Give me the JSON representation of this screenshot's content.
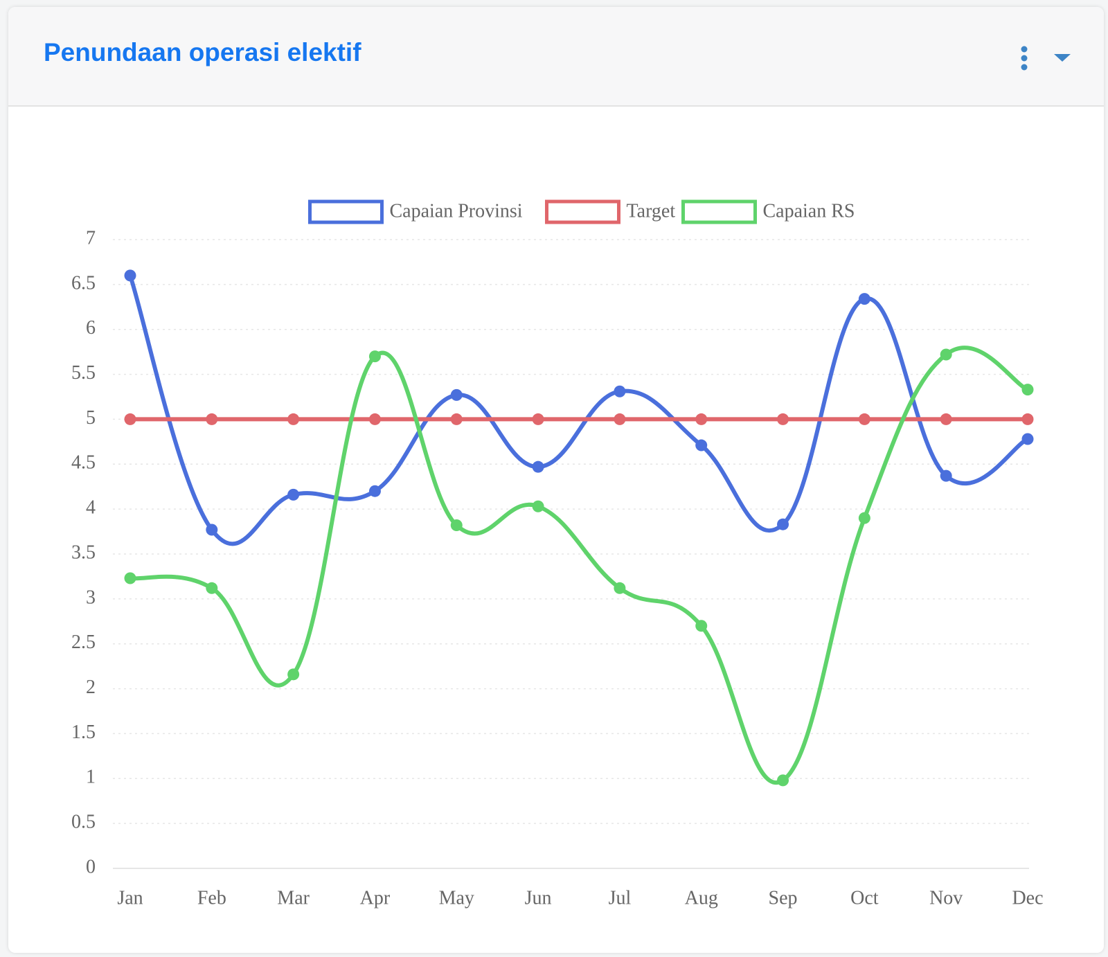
{
  "header": {
    "title": "Penundaan operasi elektif"
  },
  "chart_data": {
    "type": "line",
    "categories": [
      "Jan",
      "Feb",
      "Mar",
      "Apr",
      "May",
      "Jun",
      "Jul",
      "Aug",
      "Sep",
      "Oct",
      "Nov",
      "Dec"
    ],
    "series": [
      {
        "name": "Capaian Provinsi",
        "color": "#4a6fdc",
        "values": [
          6.6,
          3.77,
          4.16,
          4.2,
          5.27,
          4.47,
          5.31,
          4.71,
          3.83,
          6.34,
          4.37,
          4.78
        ]
      },
      {
        "name": "Target",
        "color": "#e0666b",
        "values": [
          5,
          5,
          5,
          5,
          5,
          5,
          5,
          5,
          5,
          5,
          5,
          5
        ]
      },
      {
        "name": "Capaian RS",
        "color": "#5fd36b",
        "values": [
          3.23,
          3.12,
          2.16,
          5.7,
          3.82,
          4.03,
          3.12,
          2.7,
          0.98,
          3.9,
          5.72,
          5.33
        ]
      }
    ],
    "ylim": [
      0,
      7
    ],
    "yticks": [
      0,
      0.5,
      1,
      1.5,
      2,
      2.5,
      3,
      3.5,
      4,
      4.5,
      5,
      5.5,
      6,
      6.5,
      7
    ],
    "grid": true,
    "legend": "top"
  }
}
